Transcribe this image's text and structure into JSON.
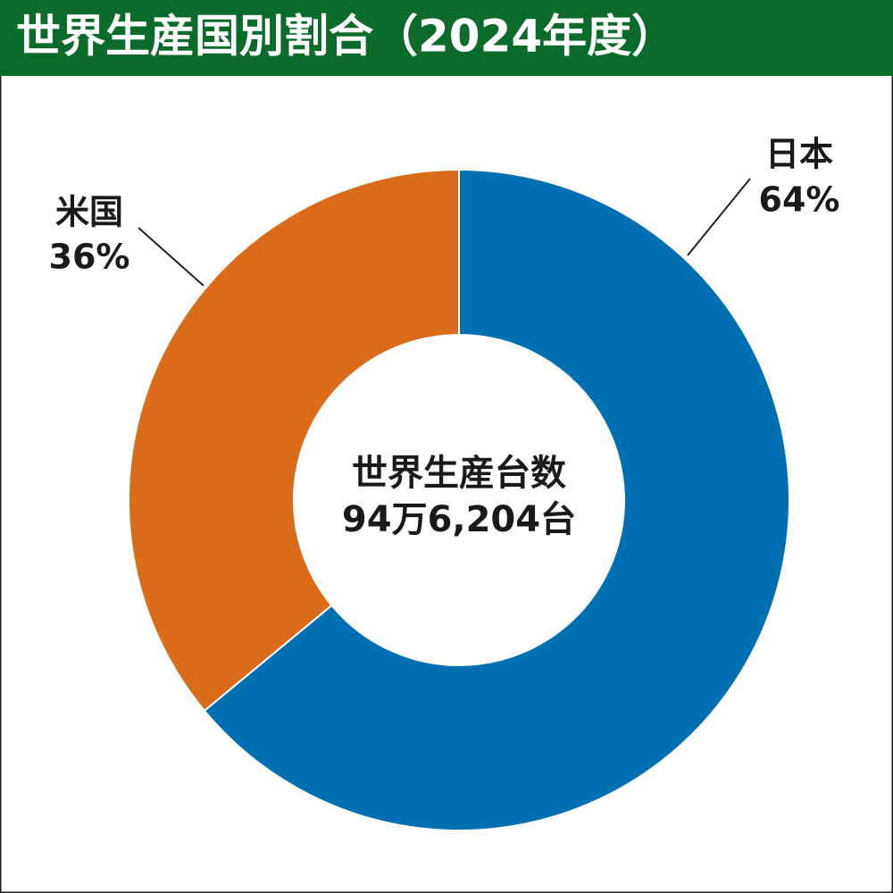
{
  "chart_data": {
    "type": "pie",
    "title": "世界生産国別割合（2024年度）",
    "categories": [
      "日本",
      "米国"
    ],
    "values": [
      64,
      36
    ],
    "value_labels": [
      "64%",
      "36%"
    ],
    "colors": [
      "#0070b2",
      "#d96b1a"
    ],
    "center_label": [
      "世界生産台数",
      "94万6,204台"
    ]
  }
}
